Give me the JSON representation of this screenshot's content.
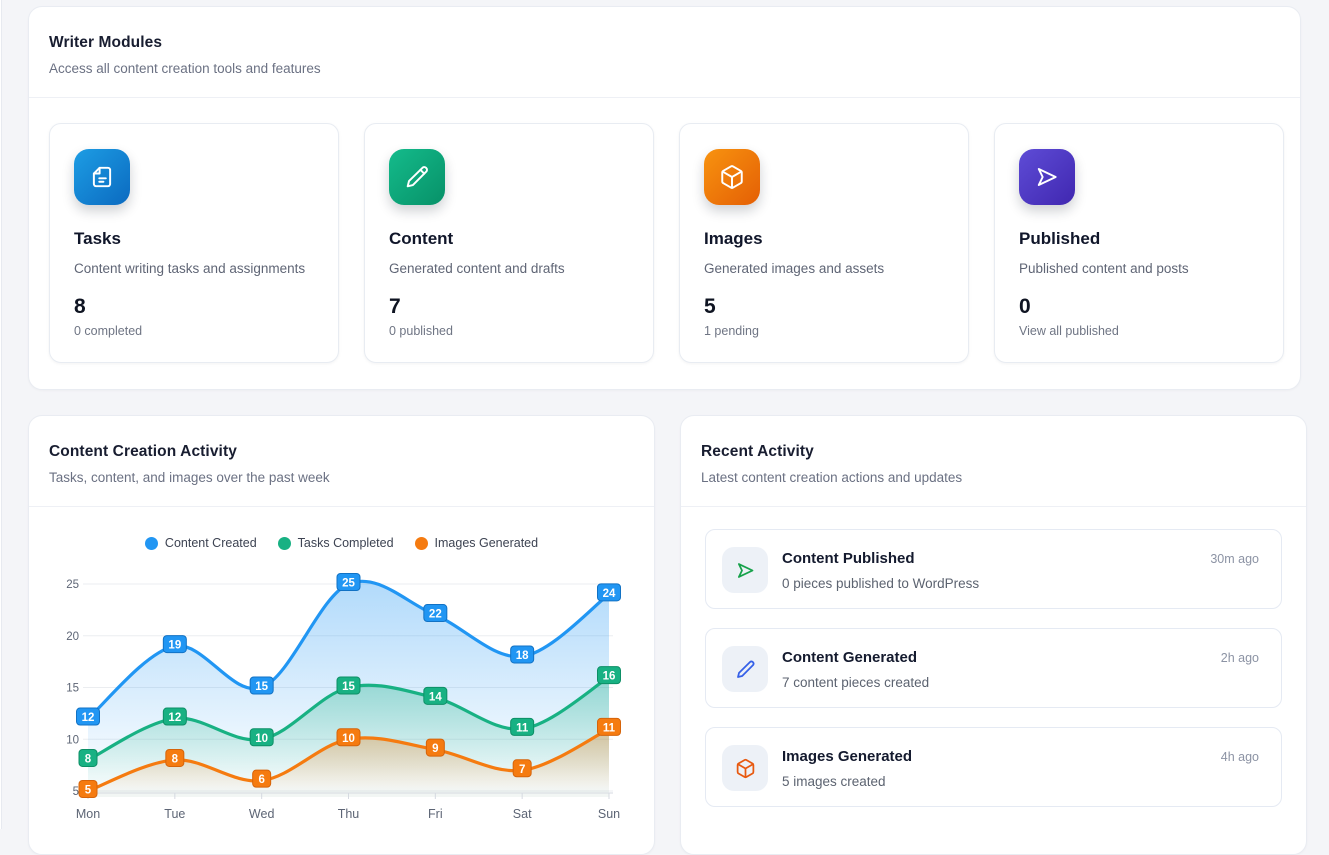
{
  "writer_modules": {
    "title": "Writer Modules",
    "subtitle": "Access all content creation tools and features",
    "cards": [
      {
        "title": "Tasks",
        "description": "Content writing tasks and assignments",
        "value": "8",
        "sub": "0 completed",
        "icon": "file-text-icon",
        "gradient": [
          "#1d9de4",
          "#0b6ac0"
        ]
      },
      {
        "title": "Content",
        "description": "Generated content and drafts",
        "value": "7",
        "sub": "0 published",
        "icon": "pencil-icon",
        "gradient": [
          "#14bb8b",
          "#079168"
        ]
      },
      {
        "title": "Images",
        "description": "Generated images and assets",
        "value": "5",
        "sub": "1 pending",
        "icon": "cube-icon",
        "gradient": [
          "#f8930f",
          "#e45f05"
        ]
      },
      {
        "title": "Published",
        "description": "Published content and posts",
        "value": "0",
        "sub": "View all published",
        "icon": "send-icon",
        "gradient": [
          "#5e4cd6",
          "#4027b0"
        ]
      }
    ]
  },
  "activity_chart": {
    "title": "Content Creation Activity",
    "subtitle": "Tasks, content, and images over the past week"
  },
  "chart_data": {
    "type": "line",
    "x": [
      "Mon",
      "Tue",
      "Wed",
      "Thu",
      "Fri",
      "Sat",
      "Sun"
    ],
    "series": [
      {
        "name": "Content Created",
        "color": "#2196f3",
        "dark": "#1272c4",
        "values": [
          12,
          19,
          15,
          25,
          22,
          18,
          24
        ]
      },
      {
        "name": "Tasks Completed",
        "color": "#18b183",
        "dark": "#0d8f66",
        "values": [
          8,
          12,
          10,
          15,
          14,
          11,
          16
        ]
      },
      {
        "name": "Images Generated",
        "color": "#f57b10",
        "dark": "#d6640a",
        "values": [
          5,
          8,
          6,
          10,
          9,
          7,
          11
        ]
      }
    ],
    "y_ticks": [
      5,
      10,
      15,
      20,
      25
    ],
    "ylim": [
      4.5,
      26
    ],
    "grid": true,
    "legend_position": "top",
    "area_fill": true,
    "point_labels": true,
    "smooth": true
  },
  "recent_activity": {
    "title": "Recent Activity",
    "subtitle": "Latest content creation actions and updates",
    "items": [
      {
        "title": "Content Published",
        "description": "0 pieces published to WordPress",
        "time": "30m ago",
        "icon": "send-icon",
        "icon_color": "#17a24b"
      },
      {
        "title": "Content Generated",
        "description": "7 content pieces created",
        "time": "2h ago",
        "icon": "pencil-icon",
        "icon_color": "#3560e8"
      },
      {
        "title": "Images Generated",
        "description": "5 images created",
        "time": "4h ago",
        "icon": "cube-icon",
        "icon_color": "#e8590f"
      }
    ]
  }
}
